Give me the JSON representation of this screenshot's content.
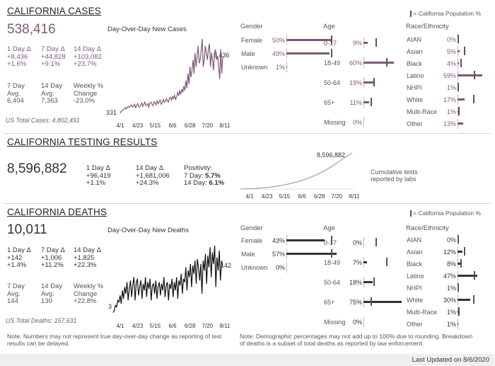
{
  "cases": {
    "title": "CALIFORNIA CASES",
    "total": "538,416",
    "chart_title": "Day-Over-Day New Cases",
    "stats": [
      {
        "label": "1 Day Δ",
        "v1": "+8,436",
        "v2": "+1.6%"
      },
      {
        "label": "7 Day Δ",
        "v1": "+44,828",
        "v2": "+9.1%"
      },
      {
        "label": "14 Day Δ",
        "v1": "+103,082",
        "v2": "+23.7%"
      }
    ],
    "avgs": [
      {
        "label1": "7 Day",
        "label2": "Avg.",
        "value": "6,404"
      },
      {
        "label1": "14 Day",
        "label2": "Avg.",
        "value": "7,363"
      },
      {
        "label1": "Weekly %",
        "label2": "Change",
        "value": "-23.0%"
      }
    ],
    "us_total": "US Total Cases: 4,802,491",
    "legend_note": "= California Population %"
  },
  "testing": {
    "title": "CALIFORNIA TESTING RESULTS",
    "total": "8,596,882",
    "stats": [
      {
        "label": "1 Day Δ",
        "v1": "+96,419",
        "v2": "+1.1%"
      },
      {
        "label": "14 Day Δ",
        "v1": "+1,681,006",
        "v2": "+24.3%"
      }
    ],
    "positivity_label": "Positivity:",
    "pos7_label": "7 Day:",
    "pos7": "5.7%",
    "pos14_label": "14 Day:",
    "pos14": "6.1%",
    "cumulative_note_1": "Cumulative tests",
    "cumulative_note_2": "reported by labs"
  },
  "deaths": {
    "title": "CALIFORNIA DEATHS",
    "total": "10,011",
    "chart_title": "Day-Over-Day New Deaths",
    "stats": [
      {
        "label": "1 Day Δ",
        "v1": "+142",
        "v2": "+1.4%"
      },
      {
        "label": "7 Day Δ",
        "v1": "+1,006",
        "v2": "+11.2%"
      },
      {
        "label": "14 Day Δ",
        "v1": "+1,825",
        "v2": "+22.3%"
      }
    ],
    "avgs": [
      {
        "label1": "7 Day",
        "label2": "Avg.",
        "value": "144"
      },
      {
        "label1": "14 Day",
        "label2": "Avg.",
        "value": "130"
      },
      {
        "label1": "Weekly %",
        "label2": "Change",
        "value": "+22.8%"
      }
    ],
    "us_total": "US Total Deaths: 157,631",
    "legend_note": "= California Population %"
  },
  "notes": {
    "left_1": "Note: Numbers may not represent true day-over-day change as reporting of test",
    "left_2": "results can be delayed.",
    "right_1": "Note: Demographic percentages may not add up to 100% due to rounding. Breakdown",
    "right_2": "of deaths is a subset of total deaths as reported by law enforcement."
  },
  "last_updated": "Last Updated on 8/6/2020",
  "colors": {
    "cases": "#7d5a78",
    "deaths": "#333333",
    "testing": "#a6a6a6",
    "marker": "#555555"
  },
  "chart_data": [
    {
      "type": "line",
      "title": "Day-Over-Day New Cases",
      "x_ticks": [
        "4/1",
        "4/23",
        "5/15",
        "6/6",
        "6/28",
        "7/20",
        "8/11"
      ],
      "x_range": [
        "2020-03-18",
        "2020-08-11"
      ],
      "ylim": [
        0,
        11000
      ],
      "first_label": "331",
      "last_label": "8,436",
      "series": [
        {
          "values": [
            331,
            600,
            700,
            800,
            1000,
            1100,
            950,
            1200,
            1300,
            1150,
            1400,
            1500,
            1200,
            1300,
            1600,
            1100,
            1400,
            1700,
            1300,
            1200,
            1500,
            1800,
            1300,
            1600,
            1900,
            1400,
            1500,
            1700,
            1200,
            1800,
            1900,
            1600,
            1400,
            2000,
            1800,
            1500,
            2100,
            1700,
            1900,
            2200,
            1600,
            1800,
            2300,
            1900,
            2000,
            2400,
            2100,
            1900,
            2500,
            2600,
            2200,
            2700,
            2400,
            2900,
            2300,
            2700,
            3300,
            2800,
            3600,
            3000,
            3800,
            3300,
            4200,
            3600,
            5000,
            3900,
            6000,
            4500,
            7000,
            5500,
            6500,
            8000,
            6000,
            9000,
            7000,
            8500,
            10000,
            7500,
            8000,
            9500,
            11000,
            7000,
            8000,
            10000,
            9000,
            8000,
            9500,
            10300,
            7000,
            9000,
            8000,
            6500,
            9000,
            9500,
            8000,
            8500,
            7000,
            5200,
            9500,
            6000,
            8436
          ]
        }
      ]
    },
    {
      "type": "area",
      "title": "",
      "x_ticks": [
        "4/1",
        "4/23",
        "5/15",
        "6/6",
        "6/28",
        "7/20",
        "8/11"
      ],
      "last_label": "8,596,882",
      "series": [
        {
          "values": [
            0,
            40000,
            90000,
            160000,
            250000,
            370000,
            520000,
            700000,
            920000,
            1180000,
            1480000,
            1830000,
            2230000,
            2700000,
            3230000,
            3830000,
            4500000,
            5250000,
            6080000,
            7000000,
            7780000,
            8596882
          ]
        }
      ]
    },
    {
      "type": "line",
      "title": "Day-Over-Day New Deaths",
      "x_ticks": [
        "4/1",
        "4/23",
        "5/15",
        "6/6",
        "6/28",
        "7/20",
        "8/11"
      ],
      "x_range": [
        "2020-03-18",
        "2020-08-11"
      ],
      "ylim": [
        0,
        220
      ],
      "first_label": "3",
      "last_label": "142",
      "series": [
        {
          "values": [
            3,
            10,
            25,
            20,
            40,
            35,
            55,
            30,
            70,
            45,
            80,
            60,
            95,
            40,
            75,
            100,
            50,
            85,
            110,
            40,
            90,
            105,
            55,
            80,
            100,
            45,
            90,
            70,
            110,
            50,
            95,
            75,
            105,
            40,
            85,
            90,
            60,
            100,
            45,
            80,
            95,
            55,
            90,
            70,
            110,
            50,
            85,
            95,
            40,
            90,
            75,
            105,
            50,
            95,
            70,
            110,
            45,
            100,
            85,
            120,
            60,
            105,
            95,
            140,
            70,
            130,
            110,
            150,
            80,
            145,
            120,
            160,
            90,
            165,
            140,
            100,
            150,
            60,
            160,
            130,
            180,
            90,
            175,
            140,
            200,
            110,
            185,
            150,
            205,
            80,
            170,
            130,
            190,
            100,
            160,
            142
          ]
        }
      ]
    }
  ],
  "demographics": {
    "cases": {
      "gender_header": "Gender",
      "age_header": "Age",
      "race_header": "Race/Ethnicity",
      "gender": [
        {
          "label": "Female",
          "pct": "50%",
          "value": 50,
          "pop": 50
        },
        {
          "label": "Male",
          "pct": "49%",
          "value": 49,
          "pop": 50
        },
        {
          "label": "Unknown",
          "pct": "1%",
          "value": 1,
          "pop": null
        }
      ],
      "age": [
        {
          "label": "0-17",
          "pct": "9%",
          "value": 9,
          "pop": 23
        },
        {
          "label": "18-49",
          "pct": "60%",
          "value": 60,
          "pop": 44
        },
        {
          "label": "50-64",
          "pct": "19%",
          "value": 19,
          "pop": 19
        },
        {
          "label": "65+",
          "pct": "11%",
          "value": 11,
          "pop": 14
        },
        {
          "label": "Missing",
          "pct": "0%",
          "value": 0,
          "pop": null
        }
      ],
      "race": [
        {
          "label": "AIAN",
          "pct": "0%",
          "value": 0,
          "pop": 0.5
        },
        {
          "label": "Asian",
          "pct": "5%",
          "value": 5,
          "pop": 15
        },
        {
          "label": "Black",
          "pct": "4%",
          "value": 4,
          "pop": 6
        },
        {
          "label": "Latino",
          "pct": "59%",
          "value": 59,
          "pop": 39
        },
        {
          "label": "NHPI",
          "pct": "1%",
          "value": 1,
          "pop": 0.3
        },
        {
          "label": "White",
          "pct": "17%",
          "value": 17,
          "pop": 37
        },
        {
          "label": "Multi-Race",
          "pct": "1%",
          "value": 1,
          "pop": 2
        },
        {
          "label": "Other",
          "pct": "13%",
          "value": 13,
          "pop": null
        }
      ],
      "missing_race": ""
    },
    "deaths": {
      "gender_header": "Gender",
      "age_header": "Age",
      "race_header": "Race/Ethnicity",
      "gender": [
        {
          "label": "Female",
          "pct": "43%",
          "value": 43,
          "pop": 50
        },
        {
          "label": "Male",
          "pct": "57%",
          "value": 57,
          "pop": 50
        },
        {
          "label": "Unknown",
          "pct": "0%",
          "value": 0,
          "pop": null
        }
      ],
      "age": [
        {
          "label": "0-17",
          "pct": "0%",
          "value": 0,
          "pop": 23
        },
        {
          "label": "18-49",
          "pct": "7%",
          "value": 7,
          "pop": 44
        },
        {
          "label": "50-64",
          "pct": "18%",
          "value": 18,
          "pop": 19
        },
        {
          "label": "65+",
          "pct": "75%",
          "value": 75,
          "pop": 14
        },
        {
          "label": "Missing",
          "pct": "0%",
          "value": 0,
          "pop": null
        }
      ],
      "race": [
        {
          "label": "AIAN",
          "pct": "0%",
          "value": 0,
          "pop": 0.5
        },
        {
          "label": "Asian",
          "pct": "12%",
          "value": 12,
          "pop": 15
        },
        {
          "label": "Black",
          "pct": "8%",
          "value": 8,
          "pop": 6
        },
        {
          "label": "Latino",
          "pct": "47%",
          "value": 47,
          "pop": 39
        },
        {
          "label": "NHPI",
          "pct": "1%",
          "value": 1,
          "pop": 0.3
        },
        {
          "label": "White",
          "pct": "30%",
          "value": 30,
          "pop": 37
        },
        {
          "label": "Multi-Race",
          "pct": "1%",
          "value": 1,
          "pop": 2
        },
        {
          "label": "Other",
          "pct": "1%",
          "value": 1,
          "pop": null
        }
      ]
    }
  }
}
